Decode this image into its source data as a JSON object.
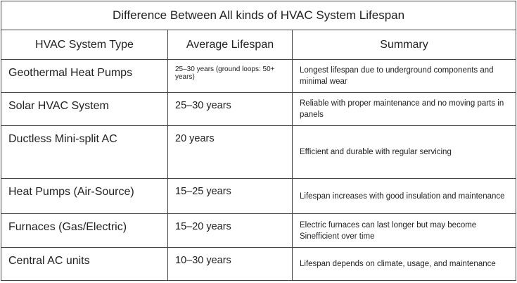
{
  "table": {
    "title": "Difference Between All kinds of HVAC System Lifespan",
    "header": [
      "HVAC System Type",
      "Average Lifespan",
      "Summary"
    ],
    "rows": [
      [
        "Geothermal Heat Pumps",
        "25–30 years (ground loops: 50+ years)",
        "Longest lifespan due to underground components and minimal wear"
      ],
      [
        "Solar HVAC System",
        "25–30 years",
        "Reliable with proper maintenance and no moving parts in panels"
      ],
      [
        "Ductless Mini-split AC",
        "20 years",
        "Efficient and durable with regular servicing"
      ],
      [
        "Heat Pumps (Air-Source)",
        "15–25 years",
        "Lifespan increases with good insulation and maintenance"
      ],
      [
        "Furnaces (Gas/Electric)",
        "15–20 years",
        "Electric furnaces can last longer but may become Sinefficient over time"
      ],
      [
        "Central AC units",
        "10–30 years",
        "Lifespan depends on climate, usage, and maintenance"
      ]
    ]
  }
}
